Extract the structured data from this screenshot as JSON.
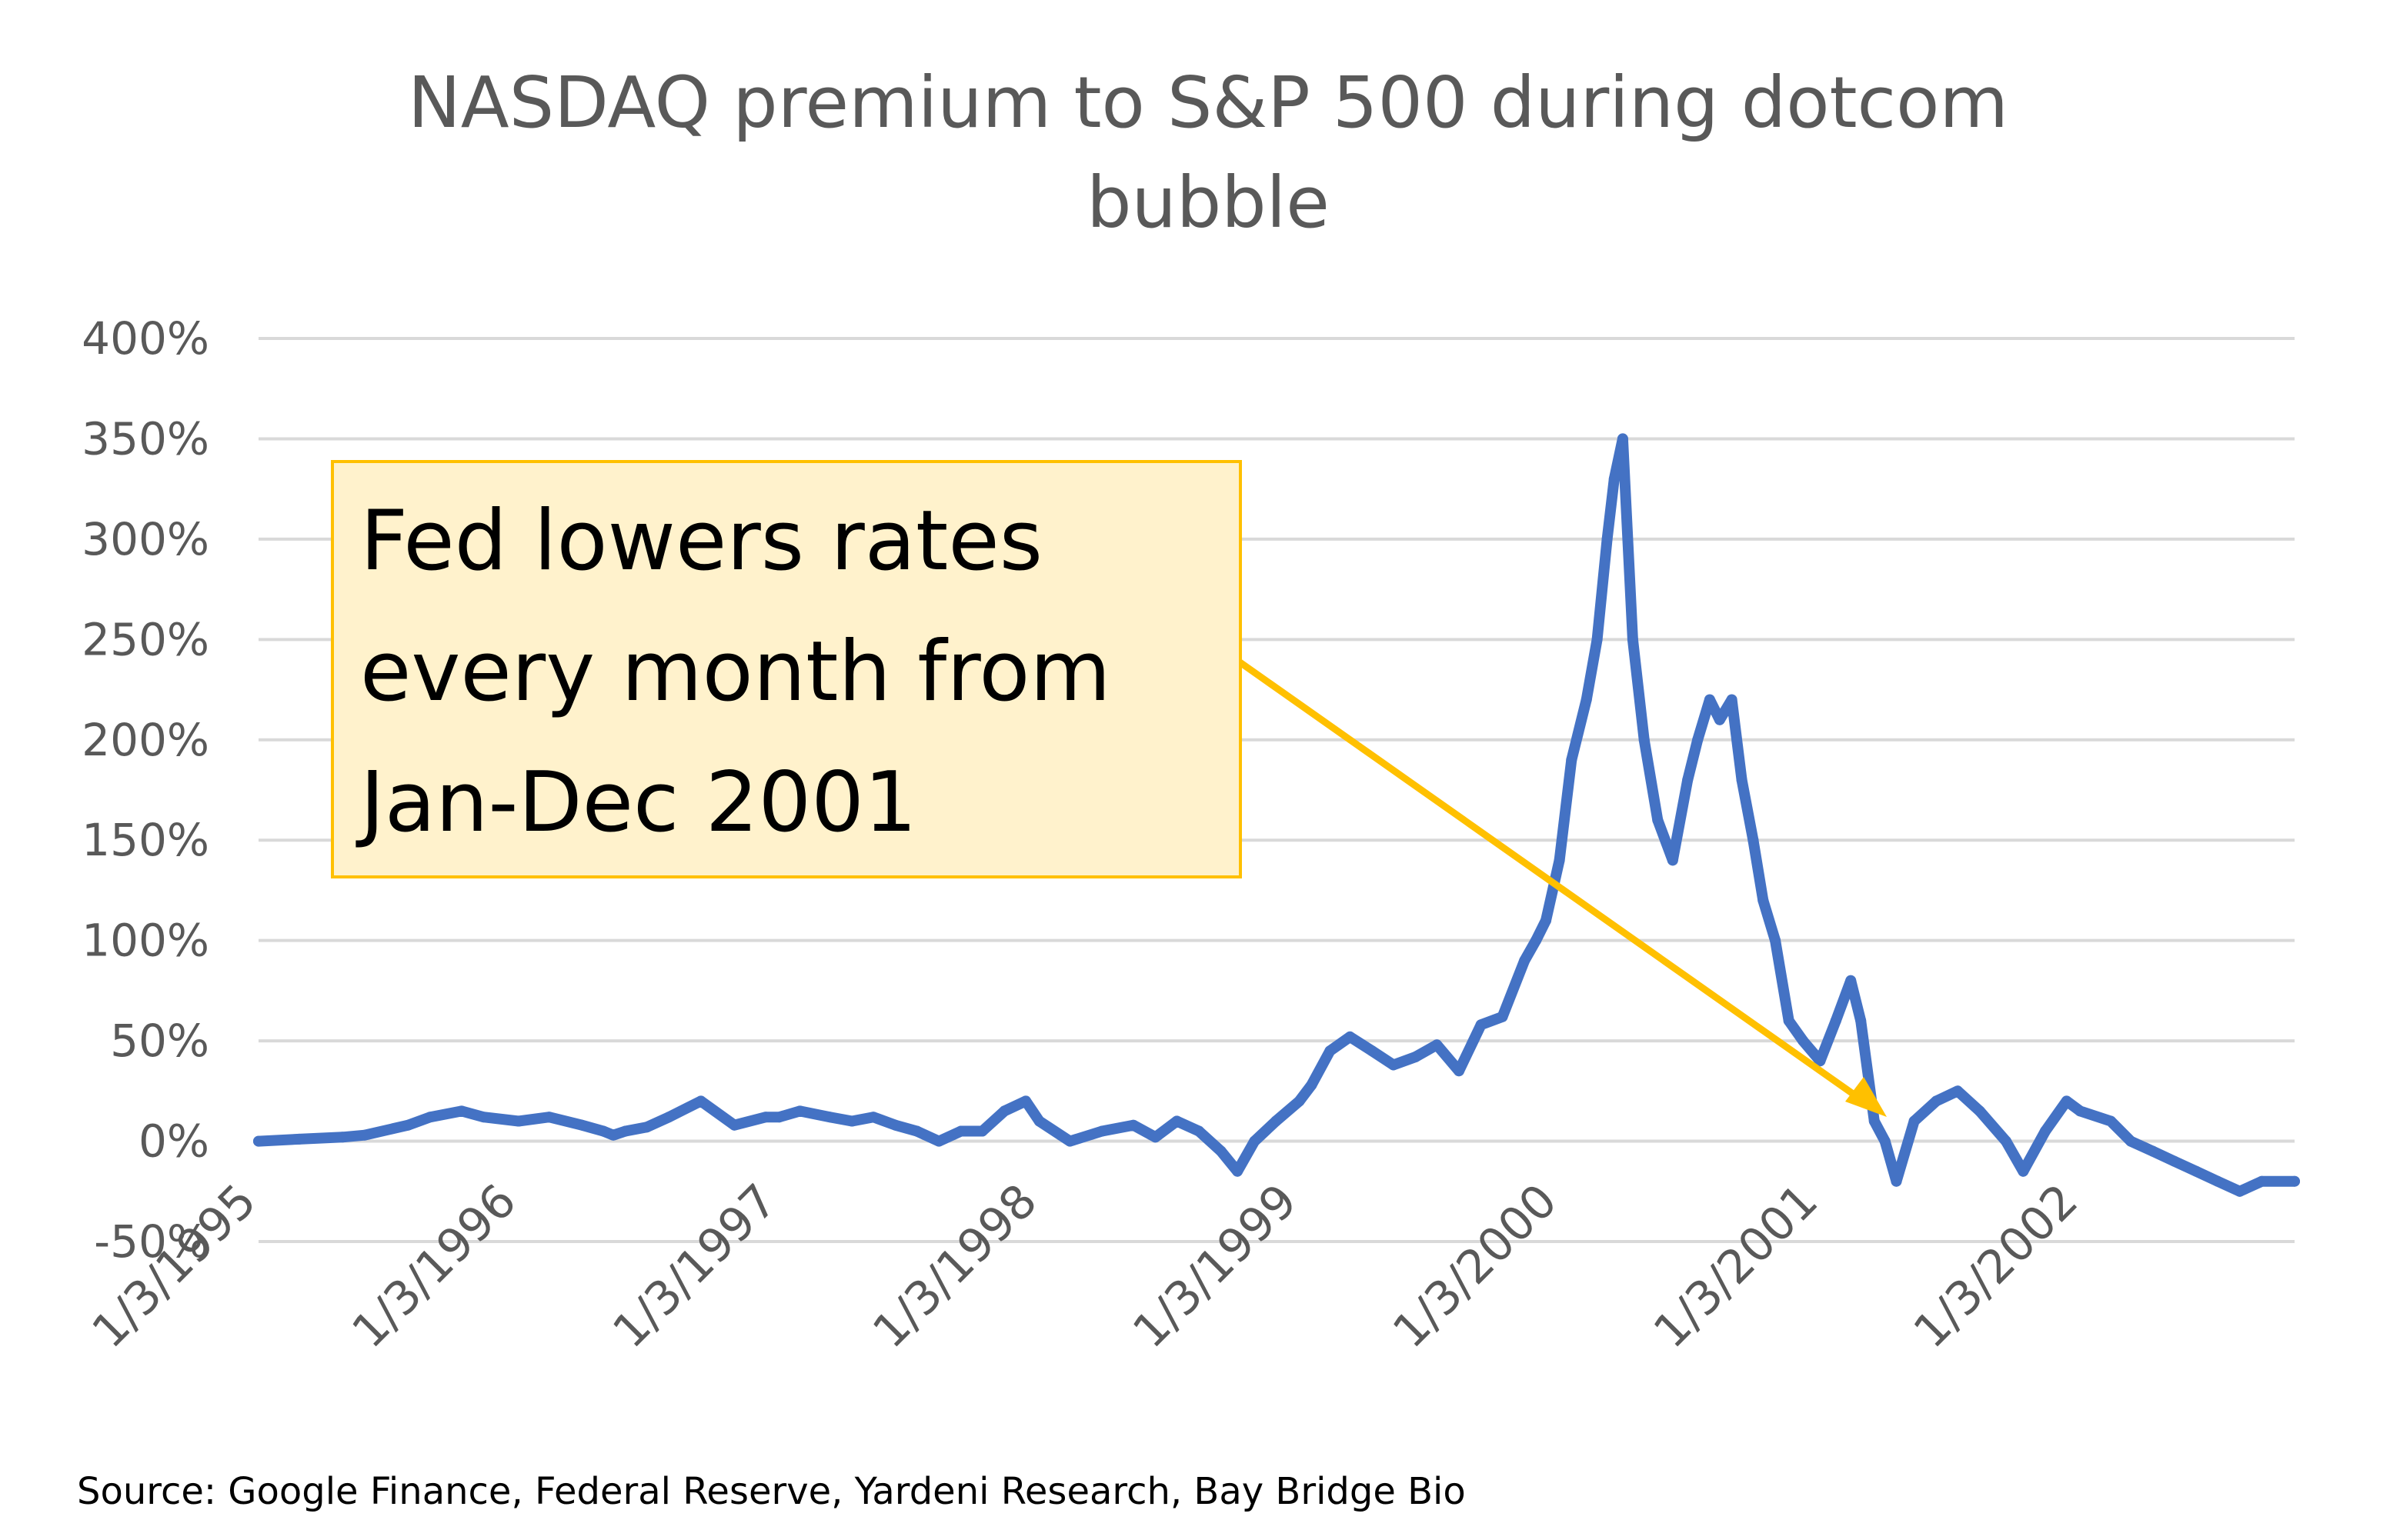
{
  "chart_data": {
    "type": "line",
    "title": "NASDAQ premium to S&P 500 during dotcom bubble",
    "title_lines": [
      "NASDAQ premium to S&P 500 during dotcom",
      "bubble"
    ],
    "xlabel": "",
    "ylabel": "",
    "x_tick_labels": [
      "1/3/1995",
      "1/3/1996",
      "1/3/1997",
      "1/3/1998",
      "1/3/1999",
      "1/3/2000",
      "1/3/2001",
      "1/3/2002"
    ],
    "y_tick_labels": [
      "400%",
      "350%",
      "300%",
      "250%",
      "200%",
      "150%",
      "100%",
      "50%",
      "0%",
      "-50%"
    ],
    "x_range": [
      "1995-01-03",
      "2002-10-31"
    ],
    "ylim": [
      -50,
      400
    ],
    "y_unit": "%",
    "grid": "horizontal",
    "line_color": "#4472c4",
    "series": [
      {
        "x": [
          "1995-01-03",
          "1995-03-01",
          "1995-05-01",
          "1995-06-01",
          "1995-08-01",
          "1995-09-01",
          "1995-10-15",
          "1995-11-15",
          "1996-01-03",
          "1996-02-15",
          "1996-04-01",
          "1996-05-01",
          "1996-05-15",
          "1996-06-01",
          "1996-07-01",
          "1996-08-01",
          "1996-09-15",
          "1996-11-01",
          "1996-12-15",
          "1997-01-03",
          "1997-02-01",
          "1997-03-15",
          "1997-04-15",
          "1997-05-15",
          "1997-06-15",
          "1997-07-15",
          "1997-08-15",
          "1997-09-15",
          "1997-10-15",
          "1997-11-15",
          "1997-12-15",
          "1998-01-03",
          "1998-02-15",
          "1998-04-01",
          "1998-05-15",
          "1998-06-15",
          "1998-07-15",
          "1998-08-15",
          "1998-09-15",
          "1998-10-08",
          "1998-11-01",
          "1998-12-01",
          "1999-01-03",
          "1999-01-20",
          "1999-02-15",
          "1999-03-15",
          "1999-04-15",
          "1999-05-15",
          "1999-06-15",
          "1999-07-15",
          "1999-08-15",
          "1999-09-15",
          "1999-10-15",
          "1999-11-15",
          "1999-12-01",
          "1999-12-15",
          "2000-01-03",
          "2000-01-20",
          "2000-02-10",
          "2000-02-25",
          "2000-03-10",
          "2000-03-20",
          "2000-04-01",
          "2000-04-15",
          "2000-05-01",
          "2000-05-20",
          "2000-06-10",
          "2000-07-01",
          "2000-07-15",
          "2000-08-01",
          "2000-08-15",
          "2000-09-01",
          "2000-09-15",
          "2000-10-01",
          "2000-10-15",
          "2000-11-01",
          "2000-11-20",
          "2000-12-10",
          "2001-01-03",
          "2001-01-25",
          "2001-02-15",
          "2001-03-01",
          "2001-03-20",
          "2001-04-04",
          "2001-04-20",
          "2001-05-15",
          "2001-06-15",
          "2001-07-15",
          "2001-08-15",
          "2001-09-21",
          "2001-10-15",
          "2001-11-15",
          "2001-12-15",
          "2002-01-03",
          "2002-02-15",
          "2002-03-15",
          "2002-04-15",
          "2002-05-15",
          "2002-06-15",
          "2002-07-15",
          "2002-08-15",
          "2002-09-15",
          "2002-10-31"
        ],
        "values": [
          0,
          1,
          2,
          3,
          8,
          12,
          15,
          12,
          10,
          12,
          8,
          5,
          3,
          5,
          7,
          12,
          20,
          8,
          12,
          12,
          15,
          12,
          10,
          12,
          8,
          5,
          0,
          5,
          5,
          15,
          20,
          10,
          0,
          5,
          8,
          2,
          10,
          5,
          -5,
          -15,
          0,
          10,
          20,
          28,
          45,
          52,
          45,
          38,
          42,
          48,
          35,
          58,
          62,
          90,
          100,
          110,
          140,
          190,
          220,
          250,
          300,
          330,
          350,
          250,
          200,
          160,
          140,
          180,
          200,
          220,
          210,
          220,
          180,
          150,
          120,
          100,
          60,
          50,
          40,
          60,
          80,
          60,
          10,
          0,
          -20,
          10,
          20,
          25,
          15,
          0,
          -15,
          5,
          20,
          15,
          10,
          0,
          -5,
          -10,
          -15,
          -20,
          -25,
          -20,
          -20
        ]
      }
    ],
    "annotation": {
      "lines": [
        "Fed lowers rates",
        "every month from",
        "Jan-Dec 2001"
      ],
      "box_fill": "#fff2cc",
      "box_border": "#ffc000",
      "arrow_color": "#ffc000"
    },
    "source": "Source: Google Finance, Federal Reserve, Yardeni Research, Bay Bridge Bio"
  }
}
